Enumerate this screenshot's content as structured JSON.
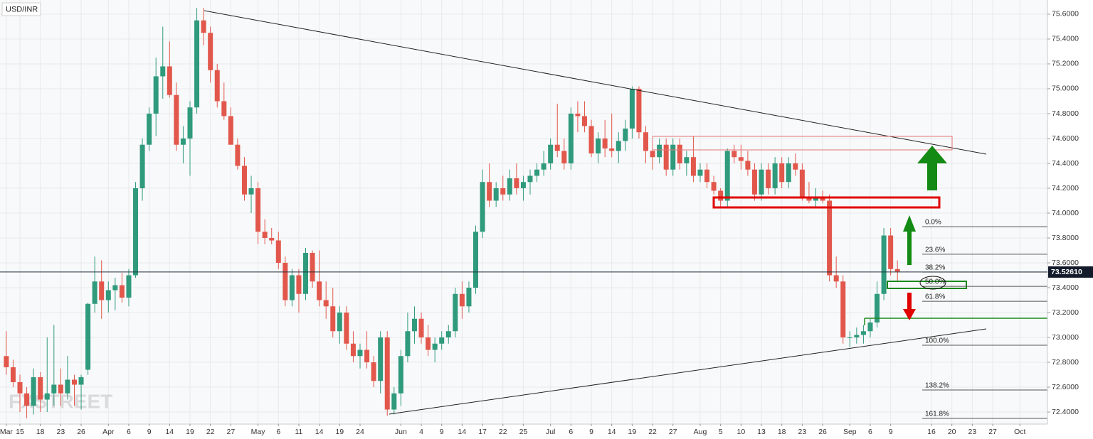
{
  "chart_data": {
    "type": "candlestick",
    "title": "USD/INR",
    "watermark": "FXSTREET",
    "x": [
      8,
      9,
      10,
      11,
      12,
      13,
      14,
      15,
      16,
      17,
      18,
      19,
      20,
      21,
      22,
      23,
      24,
      25,
      26,
      27,
      28,
      29,
      30,
      31,
      32,
      33,
      34,
      35,
      36,
      37,
      38,
      39,
      40,
      41,
      42,
      43,
      44,
      45,
      46,
      47,
      48,
      49,
      50,
      51,
      52,
      53,
      54,
      55,
      56,
      57,
      58,
      59,
      60,
      61,
      62,
      63,
      64,
      65,
      66,
      67,
      68,
      69,
      70,
      71,
      72,
      73,
      74,
      75,
      76,
      77,
      78,
      79,
      80,
      81,
      82,
      83,
      84,
      85,
      86,
      87,
      88,
      89,
      90,
      91,
      92,
      93,
      94,
      95,
      96,
      97,
      98,
      99,
      100,
      101,
      102,
      103,
      104,
      105,
      106,
      107,
      108,
      109,
      110,
      111,
      112,
      113,
      114,
      115,
      116,
      117,
      118,
      119,
      120,
      121,
      122,
      123,
      124,
      125,
      126,
      127,
      128,
      129,
      130,
      131,
      132,
      133,
      134,
      135,
      136,
      137,
      138,
      139
    ],
    "open": [
      72.85,
      72.76,
      72.64,
      72.55,
      72.45,
      72.68,
      72.5,
      72.55,
      72.62,
      72.55,
      72.66,
      72.62,
      72.74,
      73.27,
      73.45,
      73.3,
      73.38,
      73.42,
      73.32,
      73.5,
      74.2,
      74.55,
      74.8,
      75.1,
      75.18,
      74.95,
      74.55,
      74.6,
      74.85,
      75.55,
      75.45,
      75.15,
      74.9,
      74.78,
      74.55,
      74.38,
      74.15,
      74.2,
      73.85,
      73.8,
      73.78,
      73.6,
      73.3,
      73.5,
      73.35,
      73.68,
      73.45,
      73.3,
      73.25,
      73.05,
      73.2,
      72.95,
      72.85,
      72.9,
      72.8,
      72.65,
      73.0,
      72.42,
      72.55,
      72.85,
      73.05,
      73.15,
      73.0,
      72.9,
      72.95,
      73.0,
      73.05,
      73.35,
      73.25,
      73.4,
      73.85,
      74.25,
      74.1,
      74.2,
      74.15,
      74.28,
      74.2,
      74.25,
      74.3,
      74.35,
      74.4,
      74.55,
      74.5,
      74.4,
      74.8,
      74.78,
      74.7,
      74.48,
      74.6,
      74.52,
      74.5,
      74.58,
      74.68,
      75.0,
      74.65,
      74.5,
      74.45,
      74.55,
      74.35,
      74.55,
      74.4,
      74.45,
      74.3,
      74.35,
      74.25,
      74.18,
      74.1,
      74.5,
      74.45,
      74.42,
      74.35,
      74.15,
      74.35,
      74.2,
      74.4,
      74.25,
      74.4,
      74.35,
      74.12,
      74.1,
      74.12,
      74.1,
      73.5,
      73.45,
      73.0,
      73.0,
      73.02,
      73.05,
      73.12,
      73.35,
      73.82,
      73.55
    ],
    "high": [
      73.05,
      72.82,
      72.7,
      72.6,
      72.75,
      72.72,
      73.0,
      73.1,
      72.75,
      72.85,
      72.7,
      72.7,
      73.28,
      73.65,
      73.62,
      73.45,
      73.48,
      73.52,
      73.55,
      74.25,
      74.6,
      74.85,
      75.25,
      75.5,
      75.38,
      75.05,
      74.7,
      74.9,
      75.65,
      75.65,
      75.5,
      75.2,
      75.05,
      74.85,
      74.6,
      74.45,
      74.3,
      74.25,
      73.95,
      73.88,
      73.85,
      73.65,
      73.55,
      73.55,
      73.72,
      73.7,
      73.7,
      73.45,
      73.4,
      73.25,
      73.25,
      73.05,
      72.95,
      73.05,
      72.85,
      73.05,
      73.05,
      72.6,
      72.9,
      73.2,
      73.25,
      73.2,
      73.1,
      73.0,
      73.05,
      73.1,
      73.4,
      73.45,
      73.45,
      73.9,
      74.35,
      74.4,
      74.25,
      74.3,
      74.35,
      74.4,
      74.3,
      74.35,
      74.4,
      74.5,
      74.6,
      74.88,
      74.6,
      74.85,
      74.9,
      74.9,
      74.75,
      74.65,
      74.75,
      74.8,
      74.65,
      74.75,
      75.02,
      75.02,
      74.7,
      74.55,
      74.6,
      74.6,
      74.6,
      74.6,
      74.5,
      74.62,
      74.4,
      74.4,
      74.3,
      74.2,
      74.52,
      74.55,
      74.55,
      74.5,
      74.4,
      74.4,
      74.4,
      74.45,
      74.45,
      74.45,
      74.48,
      74.4,
      74.25,
      74.2,
      74.18,
      74.15,
      73.65,
      73.5,
      73.05,
      73.08,
      73.1,
      73.15,
      73.45,
      73.88,
      73.88,
      73.62
    ],
    "low": [
      72.7,
      72.6,
      72.4,
      72.35,
      72.38,
      72.4,
      72.4,
      72.45,
      72.45,
      72.5,
      72.45,
      72.42,
      72.7,
      73.2,
      73.15,
      73.2,
      73.22,
      73.28,
      73.25,
      73.48,
      74.1,
      74.5,
      74.62,
      74.92,
      74.93,
      74.5,
      74.4,
      74.3,
      74.8,
      75.35,
      75.05,
      74.85,
      74.75,
      74.55,
      74.35,
      74.1,
      74.0,
      73.75,
      73.75,
      73.75,
      73.55,
      73.25,
      73.25,
      73.2,
      73.3,
      73.4,
      73.25,
      73.15,
      73.0,
      72.95,
      72.9,
      72.8,
      72.75,
      72.75,
      72.6,
      72.55,
      72.37,
      72.38,
      72.45,
      72.8,
      72.95,
      72.95,
      72.85,
      72.8,
      72.9,
      72.95,
      73.0,
      73.15,
      73.2,
      73.35,
      73.8,
      74.05,
      74.05,
      74.1,
      74.1,
      74.15,
      74.1,
      74.15,
      74.25,
      74.3,
      74.35,
      74.45,
      74.35,
      74.35,
      74.65,
      74.65,
      74.45,
      74.4,
      74.45,
      74.45,
      74.4,
      74.5,
      74.6,
      74.6,
      74.4,
      74.35,
      74.4,
      74.3,
      74.3,
      74.35,
      74.3,
      74.25,
      74.25,
      74.2,
      74.15,
      74.05,
      74.05,
      74.4,
      74.35,
      74.3,
      74.1,
      74.1,
      74.15,
      74.15,
      74.2,
      74.2,
      74.3,
      74.1,
      74.08,
      74.05,
      74.08,
      73.45,
      73.4,
      72.95,
      72.92,
      72.95,
      72.95,
      73.0,
      73.08,
      73.3,
      73.5,
      73.45
    ],
    "close": [
      72.76,
      72.64,
      72.55,
      72.45,
      72.68,
      72.5,
      72.55,
      72.62,
      72.55,
      72.66,
      72.62,
      72.68,
      73.27,
      73.45,
      73.3,
      73.38,
      73.42,
      73.32,
      73.5,
      74.2,
      74.55,
      74.8,
      75.1,
      75.18,
      74.95,
      74.55,
      74.6,
      74.85,
      75.55,
      75.45,
      75.15,
      74.9,
      74.78,
      74.55,
      74.38,
      74.15,
      74.2,
      73.85,
      73.8,
      73.78,
      73.6,
      73.3,
      73.5,
      73.35,
      73.68,
      73.45,
      73.3,
      73.25,
      73.05,
      73.2,
      72.95,
      72.85,
      72.9,
      72.8,
      72.65,
      73.0,
      72.42,
      72.55,
      72.85,
      73.05,
      73.15,
      73.0,
      72.9,
      72.95,
      73.0,
      73.05,
      73.35,
      73.25,
      73.4,
      73.85,
      74.25,
      74.1,
      74.2,
      74.15,
      74.28,
      74.2,
      74.25,
      74.3,
      74.35,
      74.4,
      74.55,
      74.5,
      74.4,
      74.8,
      74.78,
      74.7,
      74.48,
      74.6,
      74.52,
      74.5,
      74.58,
      74.68,
      75.0,
      74.65,
      74.5,
      74.45,
      74.55,
      74.35,
      74.55,
      74.4,
      74.45,
      74.3,
      74.35,
      74.25,
      74.18,
      74.1,
      74.5,
      74.45,
      74.42,
      74.35,
      74.15,
      74.35,
      74.2,
      74.4,
      74.25,
      74.4,
      74.35,
      74.12,
      74.1,
      74.12,
      74.1,
      73.5,
      73.45,
      73.0,
      73.0,
      73.02,
      73.05,
      73.12,
      73.35,
      73.82,
      73.55,
      73.53
    ],
    "up_color": "#2f9a7c",
    "down_color": "#e2574c",
    "last_price": {
      "value": 73.5261,
      "label": "73.52610"
    },
    "fib_levels": [
      {
        "label": "0.0%",
        "value": 73.891
      },
      {
        "label": "23.6%",
        "value": 73.669
      },
      {
        "label": "38.2%",
        "value": 73.526
      },
      {
        "label": "50.0%",
        "value": 73.411
      },
      {
        "label": "61.8%",
        "value": 73.291
      },
      {
        "label": "100.0%",
        "value": 72.937
      },
      {
        "label": "138.2%",
        "value": 72.577
      },
      {
        "label": "161.8%",
        "value": 72.349
      }
    ],
    "xlim": [
      7.07,
      161.05
    ],
    "ylim": [
      72.303,
      75.714
    ],
    "xticks": [
      {
        "value": 8,
        "label": "Mar"
      },
      {
        "value": 10,
        "label": "15"
      },
      {
        "value": 13,
        "label": "18"
      },
      {
        "value": 16,
        "label": "23"
      },
      {
        "value": 19,
        "label": "26"
      },
      {
        "value": 23,
        "label": "Apr"
      },
      {
        "value": 26,
        "label": "6"
      },
      {
        "value": 29,
        "label": "9"
      },
      {
        "value": 32,
        "label": "14"
      },
      {
        "value": 35,
        "label": "19"
      },
      {
        "value": 38,
        "label": "22"
      },
      {
        "value": 41,
        "label": "27"
      },
      {
        "value": 45,
        "label": "May"
      },
      {
        "value": 48,
        "label": "6"
      },
      {
        "value": 51,
        "label": "11"
      },
      {
        "value": 54,
        "label": "14"
      },
      {
        "value": 57,
        "label": "19"
      },
      {
        "value": 60,
        "label": "24"
      },
      {
        "value": 66,
        "label": "Jun"
      },
      {
        "value": 69,
        "label": "4"
      },
      {
        "value": 72,
        "label": "9"
      },
      {
        "value": 75,
        "label": "14"
      },
      {
        "value": 78,
        "label": "17"
      },
      {
        "value": 81,
        "label": "22"
      },
      {
        "value": 84,
        "label": "25"
      },
      {
        "value": 88,
        "label": "Jul"
      },
      {
        "value": 91,
        "label": "6"
      },
      {
        "value": 94,
        "label": "9"
      },
      {
        "value": 97,
        "label": "14"
      },
      {
        "value": 100,
        "label": "19"
      },
      {
        "value": 103,
        "label": "22"
      },
      {
        "value": 106,
        "label": "27"
      },
      {
        "value": 110,
        "label": "Aug"
      },
      {
        "value": 113,
        "label": "5"
      },
      {
        "value": 116,
        "label": "10"
      },
      {
        "value": 119,
        "label": "13"
      },
      {
        "value": 122,
        "label": "18"
      },
      {
        "value": 125,
        "label": "23"
      },
      {
        "value": 128,
        "label": "26"
      },
      {
        "value": 132,
        "label": "Sep"
      },
      {
        "value": 135,
        "label": "6"
      },
      {
        "value": 138,
        "label": "9"
      },
      {
        "value": 144,
        "label": "16"
      },
      {
        "value": 147,
        "label": "20"
      },
      {
        "value": 150,
        "label": "23"
      },
      {
        "value": 153,
        "label": "27"
      },
      {
        "value": 157,
        "label": "Oct"
      }
    ],
    "yticks": [
      {
        "value": 72.4,
        "label": "72.4000"
      },
      {
        "value": 72.6,
        "label": "72.6000"
      },
      {
        "value": 72.8,
        "label": "72.8000"
      },
      {
        "value": 73.0,
        "label": "73.0000"
      },
      {
        "value": 73.2,
        "label": "73.2000"
      },
      {
        "value": 73.4,
        "label": "73.4000"
      },
      {
        "value": 73.6,
        "label": "73.6000"
      },
      {
        "value": 73.8,
        "label": "73.8000"
      },
      {
        "value": 74.0,
        "label": "74.0000"
      },
      {
        "value": 74.2,
        "label": "74.2000"
      },
      {
        "value": 74.4,
        "label": "74.4000"
      },
      {
        "value": 74.6,
        "label": "74.6000"
      },
      {
        "value": 74.8,
        "label": "74.8000"
      },
      {
        "value": 75.0,
        "label": "75.0000"
      },
      {
        "value": 75.2,
        "label": "75.2000"
      },
      {
        "value": 75.4,
        "label": "75.4000"
      },
      {
        "value": 75.6,
        "label": "75.6000"
      }
    ],
    "grid": true
  }
}
